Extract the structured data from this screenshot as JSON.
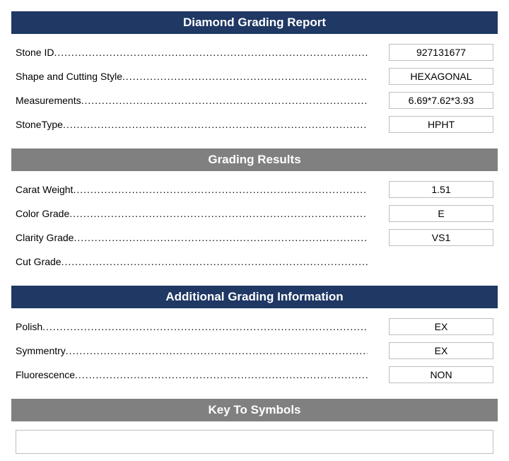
{
  "colors": {
    "navy": "#1f3864",
    "gray": "#808080",
    "border": "#bfbfbf",
    "text": "#000000",
    "header_text": "#ffffff",
    "background": "#ffffff"
  },
  "sections": {
    "report": {
      "title": "Diamond Grading Report",
      "bar_color": "navy",
      "rows": [
        {
          "label": "Stone ID",
          "value": "927131677"
        },
        {
          "label": "Shape and Cutting Style",
          "value": "HEXAGONAL"
        },
        {
          "label": "Measurements",
          "value": "6.69*7.62*3.93"
        },
        {
          "label": "StoneType",
          "value": "HPHT"
        }
      ]
    },
    "grading": {
      "title": "Grading Results",
      "bar_color": "gray",
      "rows": [
        {
          "label": "Carat Weight",
          "value": "1.51"
        },
        {
          "label": "Color Grade",
          "value": "E"
        },
        {
          "label": "Clarity Grade",
          "value": "VS1"
        },
        {
          "label": "Cut Grade",
          "value": ""
        }
      ]
    },
    "additional": {
      "title": "Additional Grading Information",
      "bar_color": "navy",
      "rows": [
        {
          "label": "Polish",
          "value": "EX"
        },
        {
          "label": "Symmentry",
          "value": "EX"
        },
        {
          "label": "Fluorescence",
          "value": "NON"
        }
      ]
    },
    "symbols": {
      "title": "Key To Symbols",
      "bar_color": "gray"
    }
  }
}
